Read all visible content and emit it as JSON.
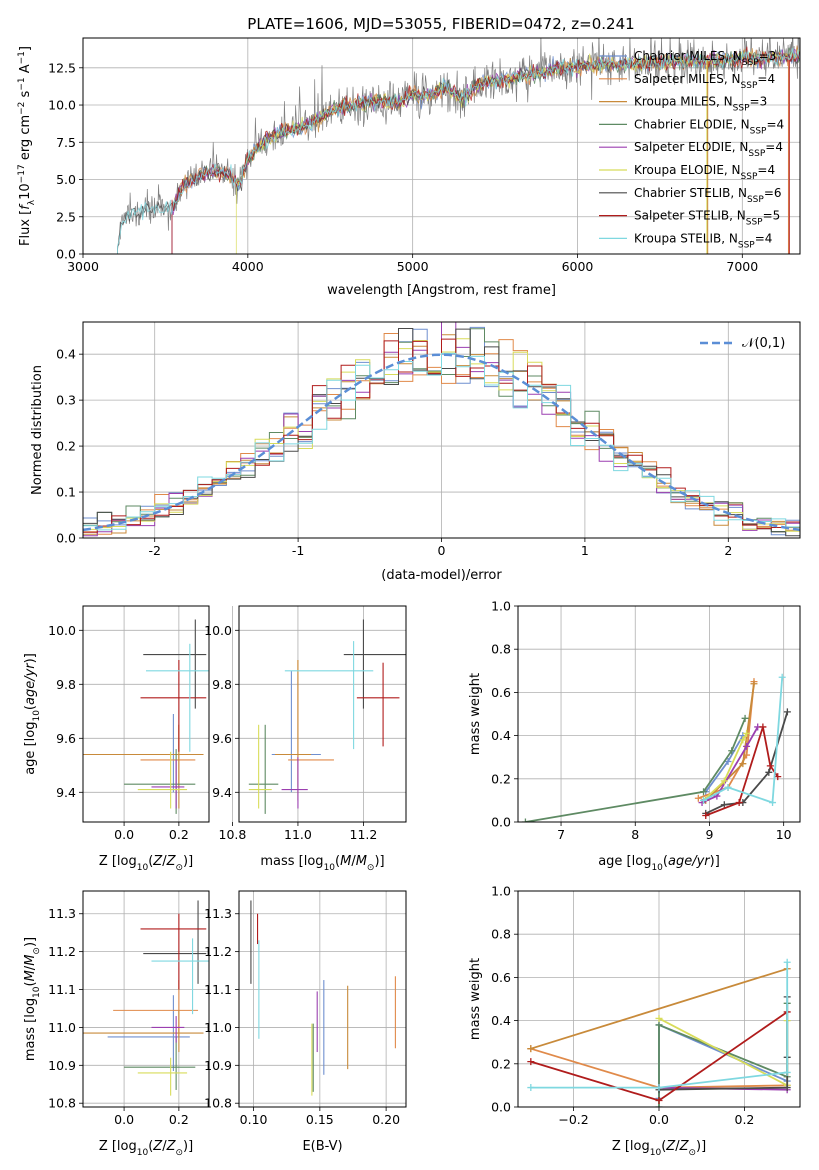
{
  "title": "PLATE=1606, MJD=53055, FIBERID=0472, z=0.241",
  "series_colors": [
    "#6f8fcf",
    "#e08a4a",
    "#c88a3a",
    "#5e8a63",
    "#9b3fb0",
    "#d8dc5a",
    "#4a4a4a",
    "#b01c1c",
    "#7fd8e0"
  ],
  "legend": [
    {
      "name": "Chabrier MILES",
      "nssp": "3"
    },
    {
      "name": "Salpeter MILES",
      "nssp": "4"
    },
    {
      "name": "Kroupa MILES",
      "nssp": "3"
    },
    {
      "name": "Chabrier ELODIE",
      "nssp": "4"
    },
    {
      "name": "Salpeter ELODIE",
      "nssp": "4"
    },
    {
      "name": "Kroupa ELODIE",
      "nssp": "4"
    },
    {
      "name": "Chabrier STELIB",
      "nssp": "6"
    },
    {
      "name": "Salpeter STELIB",
      "nssp": "5"
    },
    {
      "name": "Kroupa STELIB",
      "nssp": "4"
    }
  ],
  "chart_data": [
    {
      "id": "spectrum",
      "type": "line",
      "xlabel": "wavelength [Angstrom, rest frame]",
      "ylabel": "Flux [f_λ 10^-17 erg cm^-2 s^-1 A^-1]",
      "xlim": [
        3000,
        7350
      ],
      "ylim": [
        0,
        14.5
      ],
      "xticks": [
        3000,
        4000,
        5000,
        6000,
        7000
      ],
      "yticks": [
        0.0,
        2.5,
        5.0,
        7.5,
        10.0,
        12.5
      ],
      "ytick_labels": [
        "0.0",
        "2.5",
        "5.0",
        "7.5",
        "10.0",
        "12.5"
      ],
      "legend_position": "upper-right",
      "data_envelope": {
        "x": [
          3210,
          3230,
          3300,
          3400,
          3500,
          3550,
          3600,
          3700,
          3800,
          3900,
          3950,
          4000,
          4100,
          4200,
          4300,
          4400,
          4500,
          4600,
          4700,
          4800,
          4900,
          5000,
          5100,
          5200,
          5300,
          5400,
          5500,
          5600,
          5700,
          5800,
          5900,
          6000,
          6200,
          6400,
          6600,
          6800,
          7000,
          7200,
          7350
        ],
        "y": [
          0.2,
          2.0,
          2.8,
          2.9,
          3.0,
          3.3,
          4.5,
          5.2,
          5.6,
          5.3,
          4.6,
          6.4,
          7.6,
          8.2,
          8.4,
          8.9,
          9.6,
          9.9,
          10.1,
          10.3,
          10.1,
          10.7,
          10.6,
          11.2,
          10.4,
          11.4,
          11.6,
          11.8,
          12.0,
          12.2,
          12.5,
          12.6,
          12.7,
          12.8,
          12.9,
          13.0,
          13.1,
          13.2,
          13.3
        ]
      },
      "model_start_x": [
        3540,
        3540,
        3540,
        3540,
        3540,
        3930,
        3210,
        3540,
        3210
      ]
    },
    {
      "id": "residuals",
      "type": "step-histogram",
      "xlabel": "(data-model)/error",
      "ylabel": "Normed distribution",
      "xlim": [
        -2.5,
        2.5
      ],
      "ylim": [
        0,
        0.47
      ],
      "xticks": [
        -2,
        -1,
        0,
        1,
        2
      ],
      "yticks": [
        0.0,
        0.1,
        0.2,
        0.3,
        0.4
      ],
      "ytick_labels": [
        "0.0",
        "0.1",
        "0.2",
        "0.3",
        "0.4"
      ],
      "bin_width": 0.1,
      "reference_curve": {
        "name": "𝒩(0,1)",
        "style": "dashed",
        "color": "#5b8ed6"
      },
      "legend_position": "upper-right"
    },
    {
      "id": "age-vs-Z",
      "type": "errorbar",
      "xlabel": "Z [log10(Z/Z⊙)]",
      "ylabel": "age  [log10(age/yr)]",
      "xlim": [
        -0.15,
        0.31
      ],
      "ylim": [
        9.29,
        10.09
      ],
      "xticks": [
        0.0,
        0.2
      ],
      "xtick_labels": [
        "0.0",
        "0.2"
      ],
      "yticks": [
        9.4,
        9.6,
        9.8,
        10.0
      ],
      "ytick_labels": [
        "9.4",
        "9.6",
        "9.8",
        "10.0"
      ],
      "points": [
        {
          "x": 0.18,
          "y": 9.54,
          "xerr": [
            0.24,
            0.06
          ],
          "yerr": [
            0.14,
            0.15
          ]
        },
        {
          "x": 0.2,
          "y": 9.52,
          "xerr": [
            0.14,
            0.06
          ],
          "yerr": [
            0.1,
            0.13
          ]
        },
        {
          "x": 0.2,
          "y": 9.54,
          "xerr": [
            0.35,
            0.09
          ],
          "yerr": [
            0.2,
            0.11
          ]
        },
        {
          "x": 0.19,
          "y": 9.43,
          "xerr": [
            0.19,
            0.07
          ],
          "yerr": [
            0.11,
            0.13
          ]
        },
        {
          "x": 0.19,
          "y": 9.42,
          "xerr": [
            0.09,
            0.03
          ],
          "yerr": [
            0.08,
            0.1
          ]
        },
        {
          "x": 0.17,
          "y": 9.41,
          "xerr": [
            0.12,
            0.06
          ],
          "yerr": [
            0.07,
            0.14
          ]
        },
        {
          "x": 0.26,
          "y": 9.91,
          "xerr": [
            0.19,
            0.04
          ],
          "yerr": [
            0.2,
            0.13
          ]
        },
        {
          "x": 0.2,
          "y": 9.75,
          "xerr": [
            0.14,
            0.1
          ],
          "yerr": [
            0.2,
            0.14
          ]
        },
        {
          "x": 0.24,
          "y": 9.85,
          "xerr": [
            0.16,
            0.07
          ],
          "yerr": [
            0.3,
            0.1
          ]
        }
      ]
    },
    {
      "id": "age-vs-mass",
      "type": "errorbar",
      "xlabel": "mass [log10(M/M⊙)]",
      "ylabel": "",
      "xlim": [
        10.82,
        11.33
      ],
      "ylim": [
        9.29,
        10.09
      ],
      "xticks": [
        10.8,
        11.0,
        11.2
      ],
      "xtick_labels": [
        "10.8",
        "11.0",
        "11.2"
      ],
      "yticks": [
        9.4,
        9.6,
        9.8,
        10.0
      ],
      "ytick_labels": [
        "9.4",
        "9.6",
        "9.8",
        "10.0"
      ],
      "points": [
        {
          "x": 10.98,
          "y": 9.54,
          "xerr": [
            0.06,
            0.09
          ],
          "yerr": [
            0.14,
            0.31
          ]
        },
        {
          "x": 11.0,
          "y": 9.52,
          "xerr": [
            0.03,
            0.11
          ],
          "yerr": [
            0.1,
            0.37
          ]
        },
        {
          "x": 11.0,
          "y": 9.54,
          "xerr": [
            0.07,
            0.04
          ],
          "yerr": [
            0.17,
            0.35
          ]
        },
        {
          "x": 10.9,
          "y": 9.43,
          "xerr": [
            0.05,
            0.04
          ],
          "yerr": [
            0.11,
            0.22
          ]
        },
        {
          "x": 11.0,
          "y": 9.41,
          "xerr": [
            0.05,
            0.03
          ],
          "yerr": [
            0.07,
            0.12
          ]
        },
        {
          "x": 10.88,
          "y": 9.41,
          "xerr": [
            0.03,
            0.04
          ],
          "yerr": [
            0.07,
            0.24
          ]
        },
        {
          "x": 11.2,
          "y": 9.91,
          "xerr": [
            0.06,
            0.13
          ],
          "yerr": [
            0.2,
            0.13
          ]
        },
        {
          "x": 11.26,
          "y": 9.75,
          "xerr": [
            0.08,
            0.05
          ],
          "yerr": [
            0.18,
            0.13
          ]
        },
        {
          "x": 11.17,
          "y": 9.85,
          "xerr": [
            0.21,
            0.06
          ],
          "yerr": [
            0.29,
            0.11
          ]
        }
      ]
    },
    {
      "id": "weight-vs-age",
      "type": "line",
      "xlabel": "age  [log10(age/yr)]",
      "ylabel": "mass weight",
      "xlim": [
        6.42,
        10.22
      ],
      "ylim": [
        0,
        1.0
      ],
      "xticks": [
        7,
        8,
        9,
        10
      ],
      "xtick_labels": [
        "7",
        "8",
        "9",
        "10"
      ],
      "yticks": [
        0.0,
        0.2,
        0.4,
        0.6,
        0.8,
        1.0
      ],
      "ytick_labels": [
        "0.0",
        "0.2",
        "0.4",
        "0.6",
        "0.8",
        "1.0"
      ],
      "series": [
        {
          "x": [
            8.95,
            9.25,
            9.45
          ],
          "y": [
            0.14,
            0.28,
            0.4
          ]
        },
        {
          "x": [
            8.85,
            9.25,
            9.5,
            9.6
          ],
          "y": [
            0.11,
            0.16,
            0.31,
            0.65
          ]
        },
        {
          "x": [
            8.95,
            9.45,
            9.6
          ],
          "y": [
            0.1,
            0.27,
            0.64
          ]
        },
        {
          "x": [
            6.52,
            8.92,
            9.3,
            9.48
          ],
          "y": [
            0.0,
            0.14,
            0.33,
            0.48
          ]
        },
        {
          "x": [
            8.9,
            9.1,
            9.5,
            9.65
          ],
          "y": [
            0.09,
            0.12,
            0.35,
            0.44
          ]
        },
        {
          "x": [
            8.92,
            9.2,
            9.45,
            9.5
          ],
          "y": [
            0.1,
            0.19,
            0.38,
            0.41
          ]
        },
        {
          "x": [
            8.95,
            9.2,
            9.45,
            9.8,
            10.05
          ],
          "y": [
            0.04,
            0.08,
            0.09,
            0.23,
            0.51
          ]
        },
        {
          "x": [
            8.95,
            9.4,
            9.72,
            9.82,
            9.92
          ],
          "y": [
            0.03,
            0.09,
            0.44,
            0.26,
            0.21
          ]
        },
        {
          "x": [
            8.92,
            9.25,
            9.85,
            9.98
          ],
          "y": [
            0.1,
            0.16,
            0.09,
            0.67
          ]
        }
      ]
    },
    {
      "id": "mass-vs-Z",
      "type": "errorbar",
      "xlabel": "Z [log10(Z/Z⊙)]",
      "ylabel": "mass [log10(M/M⊙)]",
      "xlim": [
        -0.15,
        0.31
      ],
      "ylim": [
        10.79,
        11.36
      ],
      "xticks": [
        0.0,
        0.2
      ],
      "xtick_labels": [
        "0.0",
        "0.2"
      ],
      "yticks": [
        10.8,
        10.9,
        11.0,
        11.1,
        11.2,
        11.3
      ],
      "ytick_labels": [
        "10.8",
        "10.9",
        "11.0",
        "11.1",
        "11.2",
        "11.3"
      ],
      "points": [
        {
          "x": 0.18,
          "y": 10.975,
          "xerr": [
            0.24,
            0.06
          ],
          "yerr": [
            0.09,
            0.11
          ]
        },
        {
          "x": 0.2,
          "y": 11.045,
          "xerr": [
            0.24,
            0.07
          ],
          "yerr": [
            0.07,
            0.08
          ]
        },
        {
          "x": 0.2,
          "y": 10.985,
          "xerr": [
            0.35,
            0.09
          ],
          "yerr": [
            0.05,
            0.06
          ]
        },
        {
          "x": 0.19,
          "y": 10.895,
          "xerr": [
            0.19,
            0.07
          ],
          "yerr": [
            0.06,
            0.08
          ]
        },
        {
          "x": 0.19,
          "y": 11.0,
          "xerr": [
            0.09,
            0.03
          ],
          "yerr": [
            0.04,
            0.03
          ]
        },
        {
          "x": 0.17,
          "y": 10.88,
          "xerr": [
            0.12,
            0.06
          ],
          "yerr": [
            0.06,
            0.04
          ]
        },
        {
          "x": 0.27,
          "y": 11.195,
          "xerr": [
            0.2,
            0.03
          ],
          "yerr": [
            0.08,
            0.14
          ]
        },
        {
          "x": 0.2,
          "y": 11.26,
          "xerr": [
            0.14,
            0.1
          ],
          "yerr": [
            0.16,
            0.04
          ]
        },
        {
          "x": 0.25,
          "y": 11.175,
          "xerr": [
            0.15,
            0.07
          ],
          "yerr": [
            0.14,
            0.06
          ]
        }
      ]
    },
    {
      "id": "mass-vs-EBV",
      "type": "errorbar",
      "xlabel": "E(B-V)",
      "ylabel": "",
      "xlim": [
        0.089,
        0.215
      ],
      "ylim": [
        10.79,
        11.36
      ],
      "xticks": [
        0.1,
        0.15,
        0.2
      ],
      "xtick_labels": [
        "0.10",
        "0.15",
        "0.20"
      ],
      "yticks": [
        10.8,
        10.9,
        11.0,
        11.1,
        11.2,
        11.3
      ],
      "ytick_labels": [
        "10.8",
        "10.9",
        "11.0",
        "11.1",
        "11.2",
        "11.3"
      ],
      "points": [
        {
          "x": 0.153,
          "y": 10.975,
          "yerr": [
            0.1,
            0.15
          ]
        },
        {
          "x": 0.207,
          "y": 11.045,
          "yerr": [
            0.1,
            0.09
          ]
        },
        {
          "x": 0.171,
          "y": 11.0,
          "yerr": [
            0.11,
            0.11
          ]
        },
        {
          "x": 0.145,
          "y": 10.93,
          "yerr": [
            0.1,
            0.08
          ]
        },
        {
          "x": 0.148,
          "y": 11.015,
          "yerr": [
            0.08,
            0.08
          ]
        },
        {
          "x": 0.144,
          "y": 10.92,
          "yerr": [
            0.1,
            0.09
          ]
        },
        {
          "x": 0.098,
          "y": 11.225,
          "yerr": [
            0.11,
            0.11
          ]
        },
        {
          "x": 0.103,
          "y": 11.26,
          "yerr": [
            0.04,
            0.04
          ]
        },
        {
          "x": 0.104,
          "y": 11.1,
          "yerr": [
            0.13,
            0.13
          ]
        }
      ]
    },
    {
      "id": "weight-vs-Z",
      "type": "line",
      "xlabel": "Z [log10(Z/Z⊙)]",
      "ylabel": "mass weight",
      "xlim": [
        -0.33,
        0.33
      ],
      "ylim": [
        0,
        1.0
      ],
      "xticks": [
        -0.2,
        0.0,
        0.2
      ],
      "xtick_labels": [
        "−0.2",
        "0.0",
        "0.2"
      ],
      "yticks": [
        0.0,
        0.2,
        0.4,
        0.6,
        0.8,
        1.0
      ],
      "ytick_labels": [
        "0.0",
        "0.2",
        "0.4",
        "0.6",
        "0.8",
        "1.0"
      ],
      "series": [
        {
          "x": [
            0.0,
            0.0,
            0.3
          ],
          "y": [
            0.04,
            0.38,
            0.12
          ]
        },
        {
          "x": [
            -0.3,
            0.0,
            0.3
          ],
          "y": [
            0.27,
            0.09,
            0.1
          ]
        },
        {
          "x": [
            -0.3,
            0.3
          ],
          "y": [
            0.27,
            0.64
          ]
        },
        {
          "x": [
            0.0,
            0.0,
            0.3,
            0.3
          ],
          "y": [
            0.0,
            0.38,
            0.14,
            0.48
          ]
        },
        {
          "x": [
            0.0,
            0.3
          ],
          "y": [
            0.09,
            0.08
          ]
        },
        {
          "x": [
            0.0,
            0.3,
            0.3
          ],
          "y": [
            0.41,
            0.1,
            0.4
          ]
        },
        {
          "x": [
            0.0,
            0.3,
            0.3,
            0.3
          ],
          "y": [
            0.08,
            0.09,
            0.51,
            0.23
          ]
        },
        {
          "x": [
            -0.3,
            0.0,
            0.3
          ],
          "y": [
            0.21,
            0.03,
            0.44
          ]
        },
        {
          "x": [
            -0.3,
            0.0,
            0.3,
            0.3
          ],
          "y": [
            0.09,
            0.09,
            0.16,
            0.67
          ]
        }
      ]
    }
  ]
}
